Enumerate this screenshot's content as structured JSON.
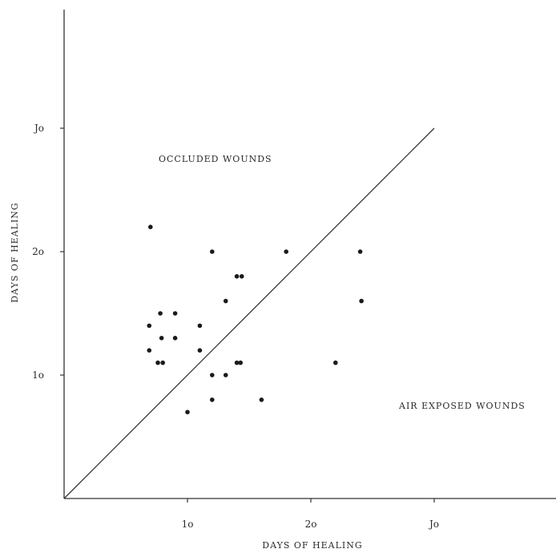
{
  "chart_data": {
    "type": "scatter",
    "xlabel": "DAYS OF HEALING",
    "ylabel": "DAYS OF HEALING",
    "xlim": [
      0,
      40
    ],
    "ylim": [
      0,
      40
    ],
    "x_ticks": [
      {
        "value": 10,
        "label": "1o"
      },
      {
        "value": 20,
        "label": "2o"
      },
      {
        "value": 30,
        "label": "Jo"
      }
    ],
    "y_ticks": [
      {
        "value": 10,
        "label": "1o"
      },
      {
        "value": 20,
        "label": "2o"
      },
      {
        "value": 30,
        "label": "Jo"
      }
    ],
    "annotations": [
      {
        "text": "OCCLUDED WOUNDS",
        "region": "upper-left"
      },
      {
        "text": "AIR EXPOSED WOUNDS",
        "region": "lower-right"
      }
    ],
    "reference_line": {
      "from": [
        0,
        0
      ],
      "to": [
        30,
        30
      ]
    },
    "grid": false,
    "points": [
      {
        "x": 7,
        "y": 22
      },
      {
        "x": 12,
        "y": 20
      },
      {
        "x": 18,
        "y": 20
      },
      {
        "x": 24,
        "y": 20
      },
      {
        "x": 14,
        "y": 18
      },
      {
        "x": 14.4,
        "y": 18
      },
      {
        "x": 13.1,
        "y": 16
      },
      {
        "x": 24.1,
        "y": 16
      },
      {
        "x": 7.8,
        "y": 15
      },
      {
        "x": 9,
        "y": 15
      },
      {
        "x": 6.9,
        "y": 14
      },
      {
        "x": 11,
        "y": 14
      },
      {
        "x": 7.9,
        "y": 13
      },
      {
        "x": 9,
        "y": 13
      },
      {
        "x": 6.9,
        "y": 12
      },
      {
        "x": 11,
        "y": 12
      },
      {
        "x": 7.6,
        "y": 11
      },
      {
        "x": 8,
        "y": 11
      },
      {
        "x": 14,
        "y": 11
      },
      {
        "x": 14.3,
        "y": 11
      },
      {
        "x": 22,
        "y": 11
      },
      {
        "x": 12,
        "y": 10
      },
      {
        "x": 13.1,
        "y": 10
      },
      {
        "x": 12,
        "y": 8
      },
      {
        "x": 16,
        "y": 8
      },
      {
        "x": 10,
        "y": 7
      }
    ]
  }
}
